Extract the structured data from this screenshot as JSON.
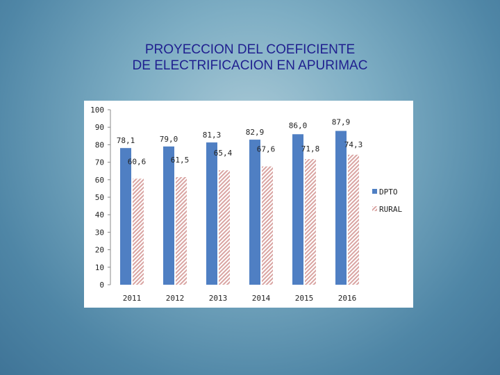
{
  "title": {
    "line1": "PROYECCION DEL COEFICIENTE",
    "line2": "DE ELECTRIFICACION EN APURIMAC"
  },
  "colors": {
    "dpto": "#4f7fc3",
    "rural": "#d9a4a2"
  },
  "chart_data": {
    "type": "bar",
    "categories": [
      "2011",
      "2012",
      "2013",
      "2014",
      "2015",
      "2016"
    ],
    "series": [
      {
        "name": "DPTO",
        "values": [
          78.1,
          79.0,
          81.3,
          82.9,
          86.0,
          87.9
        ],
        "labels": [
          "78,1",
          "79,0",
          "81,3",
          "82,9",
          "86,0",
          "87,9"
        ]
      },
      {
        "name": "RURAL",
        "values": [
          60.6,
          61.5,
          65.4,
          67.6,
          71.8,
          74.3
        ],
        "labels": [
          "60,6",
          "61,5",
          "65,4",
          "67,6",
          "71,8",
          "74,3"
        ]
      }
    ],
    "ylim": [
      0,
      100
    ],
    "yticks": [
      "0",
      "10",
      "20",
      "30",
      "40",
      "50",
      "60",
      "70",
      "80",
      "90",
      "100"
    ],
    "legend_position": "right",
    "grid": false
  }
}
